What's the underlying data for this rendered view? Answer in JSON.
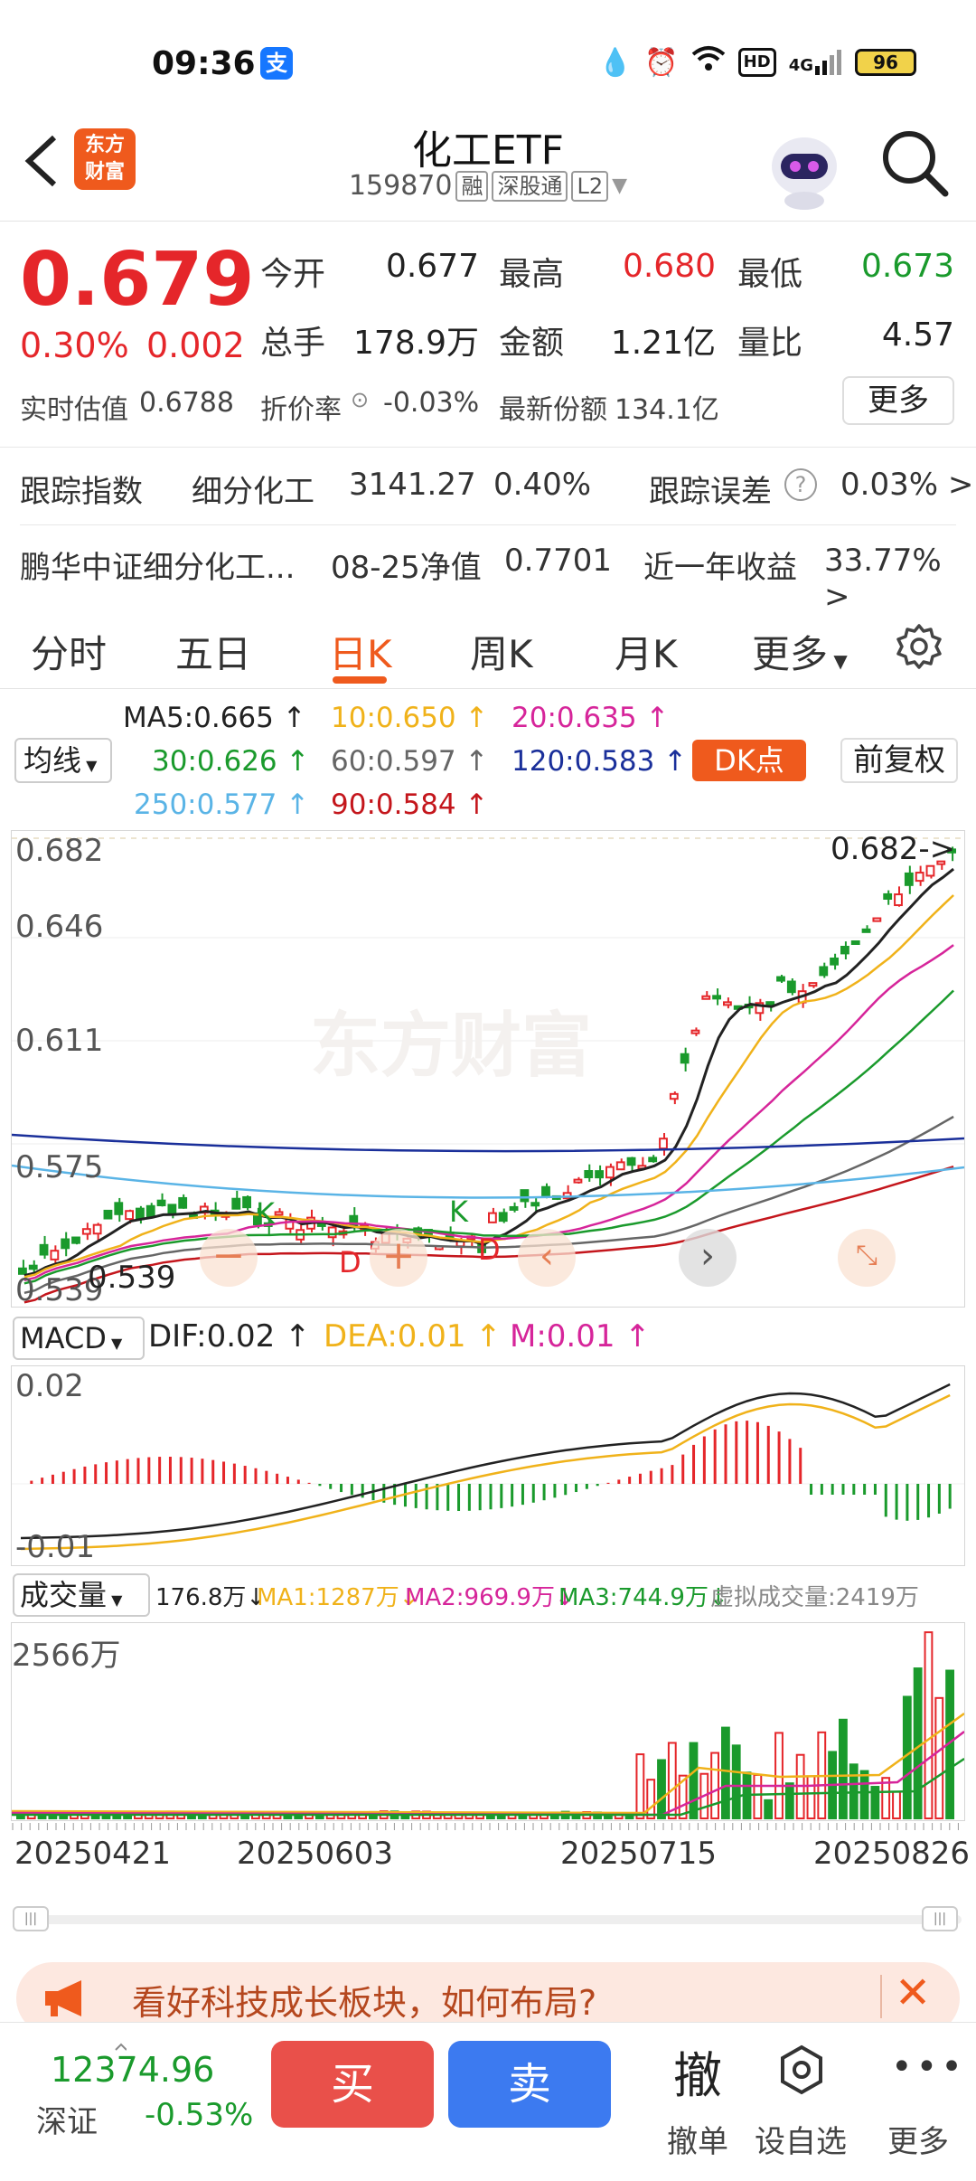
{
  "status_bar": {
    "time": "09:36",
    "alipay_badge": "支",
    "hd": "HD",
    "network": "4G",
    "battery": "96"
  },
  "header": {
    "logo_line1": "东方",
    "logo_line2": "财富",
    "title": "化工ETF",
    "code": "159870",
    "tag_margin": "融",
    "tag_connect": "深股通",
    "tag_level": "L2"
  },
  "quote": {
    "price": "0.679",
    "change_pct": "0.30%",
    "change": "0.002",
    "open_label": "今开",
    "open": "0.677",
    "high_label": "最高",
    "high": "0.680",
    "low_label": "最低",
    "low": "0.673",
    "volume_label": "总手",
    "volume": "178.9万",
    "amount_label": "金额",
    "amount": "1.21亿",
    "vol_ratio_label": "量比",
    "vol_ratio": "4.57",
    "est_label": "实时估值",
    "est": "0.6788",
    "premium_label": "折价率",
    "premium": "-0.03%",
    "shares_label": "最新份额",
    "shares": "134.1亿",
    "more": "更多"
  },
  "tracking": {
    "index_label": "跟踪指数",
    "index_name": "细分化工",
    "index_value": "3141.27",
    "index_pct": "0.40%",
    "error_label": "跟踪误差",
    "error_value": "0.03% >"
  },
  "fund": {
    "name": "鹏华中证细分化工...",
    "nav_label": "08-25净值",
    "nav": "0.7701",
    "year_label": "近一年收益",
    "year_return": "33.77% >"
  },
  "tabs": [
    "分时",
    "五日",
    "日K",
    "周K",
    "月K",
    "更多"
  ],
  "ma_legend": {
    "selector": "均线",
    "ma5": "MA5:0.665",
    "ma10": "10:0.650",
    "ma20": "20:0.635",
    "ma30": "30:0.626",
    "ma60": "60:0.597",
    "ma120": "120:0.583",
    "ma250": "250:0.577",
    "ma90": "90:0.584",
    "dk": "DK点",
    "adjust": "前复权",
    "colors": {
      "ma5": "#222222",
      "ma10": "#f0b21a",
      "ma20": "#d6259a",
      "ma30": "#1a9a2c",
      "ma60": "#666666",
      "ma120": "#1a2f9a",
      "ma250": "#5ab4e6",
      "ma90": "#c4161c"
    }
  },
  "kline": {
    "y_labels": [
      "0.682",
      "0.646",
      "0.611",
      "0.575",
      "0.539"
    ],
    "max_marker": "0.682->",
    "min_marker": "0.539",
    "watermark": "东方财富",
    "markers": [
      "K",
      "D",
      "K",
      "D"
    ]
  },
  "macd": {
    "selector": "MACD",
    "dif": "DIF:0.02",
    "dea": "DEA:0.01",
    "m": "M:0.01",
    "y_top": "0.02",
    "y_bottom": "-0.01"
  },
  "volume": {
    "selector": "成交量",
    "current": "176.8万",
    "ma1": "MA1:1287万",
    "ma2": "MA2:969.9万",
    "ma3": "MA3:744.9万",
    "virtual": "虚拟成交量:2419万",
    "y_top": "2566万"
  },
  "x_dates": [
    "20250421",
    "20250603",
    "20250715",
    "20250826"
  ],
  "ad": {
    "text": "看好科技成长板块，如何布局?"
  },
  "bottom": {
    "index_value": "12374.96",
    "index_name": "深证",
    "index_pct": "-0.53%",
    "buy": "买",
    "sell": "卖",
    "cancel_icon": "撤",
    "cancel": "撤单",
    "set_fav": "设自选",
    "more": "更多"
  }
}
